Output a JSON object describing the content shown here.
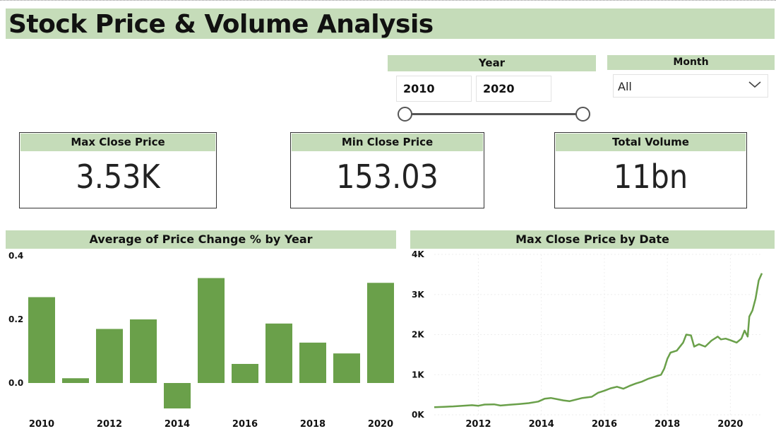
{
  "title": "Stock Price & Volume Analysis",
  "filters": {
    "year_label": "Year",
    "year_start": "2010",
    "year_end": "2020",
    "month_label": "Month",
    "month_value": "All"
  },
  "kpis": [
    {
      "label": "Max Close Price",
      "value": "3.53K"
    },
    {
      "label": "Min Close Price",
      "value": "153.03"
    },
    {
      "label": "Total Volume",
      "value": "11bn"
    }
  ],
  "colors": {
    "accent": "#c5dcb9",
    "bar": "#6aa04a",
    "line": "#6aa04a"
  },
  "chart_data": [
    {
      "type": "bar",
      "title": "Average of Price Change % by Year",
      "x": [
        2010,
        2011,
        2012,
        2013,
        2014,
        2015,
        2016,
        2017,
        2018,
        2019,
        2020
      ],
      "x_tick_labels": [
        "2010",
        "2012",
        "2014",
        "2016",
        "2018",
        "2020"
      ],
      "values": [
        0.27,
        0.015,
        0.17,
        0.2,
        -0.08,
        0.33,
        0.06,
        0.187,
        0.127,
        0.093,
        0.315
      ],
      "y_ticks": [
        "0.0",
        "0.2",
        "0.4"
      ],
      "ylim": [
        -0.08,
        0.4
      ],
      "grid": false
    },
    {
      "type": "line",
      "title": "Max Close Price by Date",
      "x_tick_labels": [
        "2012",
        "2014",
        "2016",
        "2018",
        "2020"
      ],
      "y_ticks": [
        "0K",
        "1K",
        "2K",
        "3K",
        "4K"
      ],
      "ylim": [
        0,
        4000
      ],
      "xlim": [
        2010.6,
        2021.0
      ],
      "grid": true,
      "points": [
        [
          2010.6,
          190
        ],
        [
          2010.9,
          200
        ],
        [
          2011.2,
          210
        ],
        [
          2011.5,
          225
        ],
        [
          2011.8,
          240
        ],
        [
          2012.0,
          225
        ],
        [
          2012.2,
          255
        ],
        [
          2012.5,
          260
        ],
        [
          2012.7,
          230
        ],
        [
          2013.0,
          250
        ],
        [
          2013.3,
          270
        ],
        [
          2013.6,
          290
        ],
        [
          2013.9,
          330
        ],
        [
          2014.1,
          400
        ],
        [
          2014.3,
          420
        ],
        [
          2014.5,
          390
        ],
        [
          2014.7,
          360
        ],
        [
          2014.9,
          340
        ],
        [
          2015.1,
          380
        ],
        [
          2015.3,
          420
        ],
        [
          2015.6,
          450
        ],
        [
          2015.8,
          550
        ],
        [
          2016.0,
          600
        ],
        [
          2016.2,
          660
        ],
        [
          2016.4,
          700
        ],
        [
          2016.6,
          650
        ],
        [
          2016.8,
          720
        ],
        [
          2017.0,
          780
        ],
        [
          2017.2,
          830
        ],
        [
          2017.4,
          900
        ],
        [
          2017.6,
          950
        ],
        [
          2017.8,
          1000
        ],
        [
          2017.9,
          1150
        ],
        [
          2018.0,
          1400
        ],
        [
          2018.1,
          1550
        ],
        [
          2018.3,
          1600
        ],
        [
          2018.5,
          1800
        ],
        [
          2018.6,
          2000
        ],
        [
          2018.75,
          1980
        ],
        [
          2018.85,
          1700
        ],
        [
          2019.0,
          1760
        ],
        [
          2019.2,
          1700
        ],
        [
          2019.4,
          1850
        ],
        [
          2019.6,
          1950
        ],
        [
          2019.7,
          1880
        ],
        [
          2019.85,
          1900
        ],
        [
          2020.0,
          1860
        ],
        [
          2020.2,
          1800
        ],
        [
          2020.35,
          1900
        ],
        [
          2020.45,
          2100
        ],
        [
          2020.55,
          1950
        ],
        [
          2020.6,
          2450
        ],
        [
          2020.7,
          2600
        ],
        [
          2020.8,
          2900
        ],
        [
          2020.9,
          3350
        ],
        [
          2021.0,
          3530
        ]
      ]
    }
  ]
}
